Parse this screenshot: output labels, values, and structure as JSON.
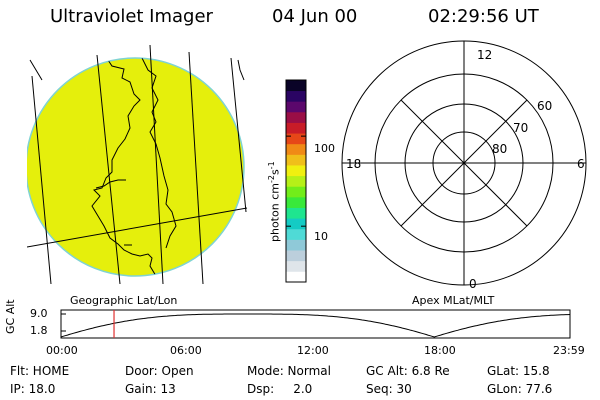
{
  "header": {
    "title": "Ultraviolet Imager",
    "date": "04 Jun 00",
    "time": "02:29:56 UT"
  },
  "earth_panel": {
    "label": "Geographic Lat/Lon",
    "fill_color": "#e5ef0c",
    "limb_color": "#7fd3d3"
  },
  "colorbar": {
    "title": "photon cm",
    "title_exp1": "-2",
    "title_mid": "s",
    "title_exp2": "-1",
    "tick_labels": [
      "100",
      "10"
    ],
    "tick_values": [
      100,
      10
    ],
    "range": [
      2.4,
      420
    ],
    "colors": [
      "#ffffff",
      "#dfe5ea",
      "#bccfdc",
      "#8fc9d8",
      "#4fdad6",
      "#14cbc4",
      "#1fe58f",
      "#39e93a",
      "#72ed1a",
      "#b6f018",
      "#f0f010",
      "#f0bf1a",
      "#f08a16",
      "#e64718",
      "#c81c28",
      "#9a0e46",
      "#5b076c",
      "#2a0463",
      "#0a0327"
    ]
  },
  "polar_panel": {
    "label": "Apex MLat/MLT",
    "mlt_labels": [
      "12",
      "6",
      "0",
      "18"
    ],
    "lat_labels": [
      "60",
      "70",
      "80"
    ]
  },
  "timeline": {
    "y_title": "GC Alt",
    "y_ticks": [
      "9.0",
      "1.8"
    ],
    "x_ticks": [
      "00:00",
      "06:00",
      "12:00",
      "18:00",
      "23:59"
    ],
    "current_time_hours": 2.5,
    "marker_color": "#e03030"
  },
  "status": {
    "flt": "Flt: HOME",
    "door": "Door: Open",
    "mode": "Mode: Normal",
    "gc_alt": "GC Alt: 6.8 Re",
    "glat": "GLat: 15.8",
    "ip": "IP: 18.0",
    "gain": "Gain: 13",
    "dsp": "Dsp:     2.0",
    "seq": "Seq: 30",
    "glon": "GLon: 77.6"
  }
}
